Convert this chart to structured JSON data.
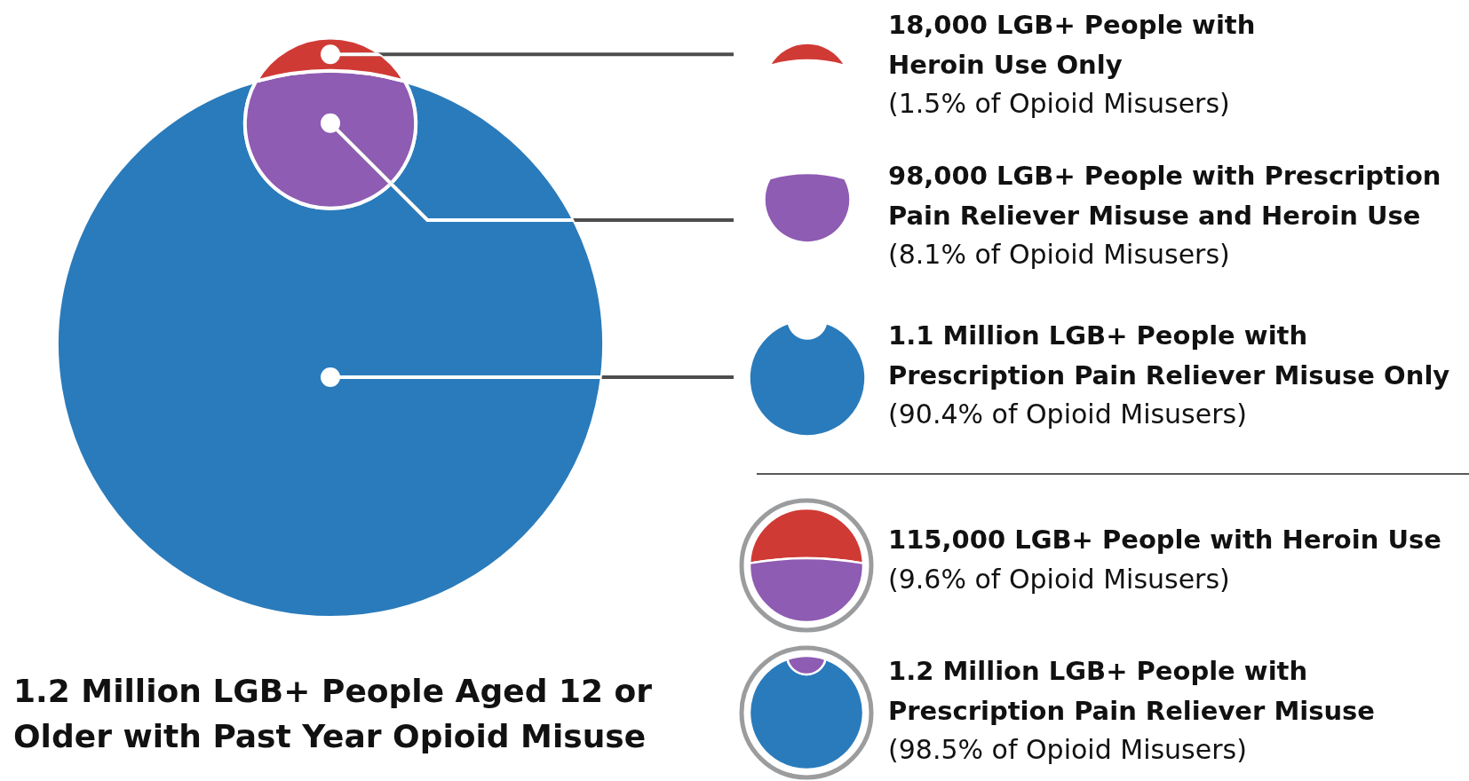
{
  "chart_data": {
    "type": "other",
    "title": "1.2 Million LGB+ People Aged 12 or\nOlder with Past Year Opioid Misuse",
    "categories": [
      "18,000 LGB+ People with\nHeroin Use Only",
      "98,000 LGB+ People with Prescription\nPain Reliever Misuse and Heroin Use",
      "1.1 Million LGB+ People with\nPrescription Pain Reliever Misuse Only"
    ],
    "values": [
      1.5,
      8.1,
      90.4
    ],
    "value_labels": [
      "(1.5% of Opioid Misusers)",
      "(8.1% of Opioid Misusers)",
      "(90.4% of Opioid Misusers)"
    ],
    "colors": [
      "#d03a35",
      "#8e5cb2",
      "#2a7bbb"
    ],
    "annotations": [
      "115,000 LGB+ People with Heroin Use",
      "(9.6% of Opioid Misusers)",
      "1.2 Million LGB+ People with\nPrescription Pain Reliever Misuse",
      "(98.5% of Opioid Misusers)"
    ]
  }
}
